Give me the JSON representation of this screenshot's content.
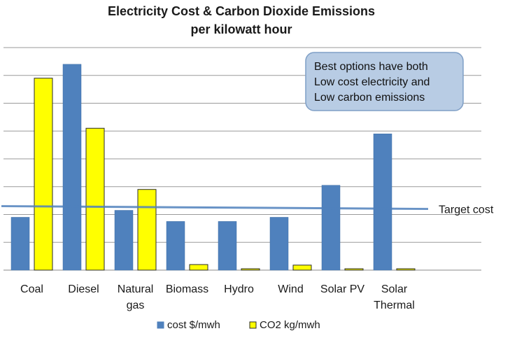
{
  "chart_data": {
    "type": "bar",
    "title": [
      "Electricity Cost & Carbon Dioxide Emissions",
      "per kilowatt hour"
    ],
    "categories": [
      [
        "Coal"
      ],
      [
        "Diesel"
      ],
      [
        "Natural",
        "gas"
      ],
      [
        "Biomass"
      ],
      [
        "Hydro"
      ],
      [
        "Wind"
      ],
      [
        "Solar PV"
      ],
      [
        "Solar",
        "Thermal"
      ]
    ],
    "series": [
      {
        "name": "cost $/mwh",
        "color": "#4f81bd",
        "values": [
          190,
          740,
          215,
          175,
          175,
          190,
          305,
          490
        ]
      },
      {
        "name": "CO2 kg/mwh",
        "color": "#ffff00",
        "values": [
          690,
          510,
          290,
          20,
          5,
          18,
          5,
          5
        ]
      }
    ],
    "ylim": [
      0,
      800
    ],
    "gridlines": true,
    "y_tick_labels_shown": false,
    "legend_position": "bottom",
    "target_line": {
      "label": "Target cost",
      "value": 225,
      "color": "#4f81bd"
    },
    "annotation": {
      "lines": [
        "Best options have both",
        "Low cost electricity and",
        "Low carbon emissions"
      ],
      "fill": "#b8cce4",
      "stroke": "#7f9fc6"
    }
  }
}
